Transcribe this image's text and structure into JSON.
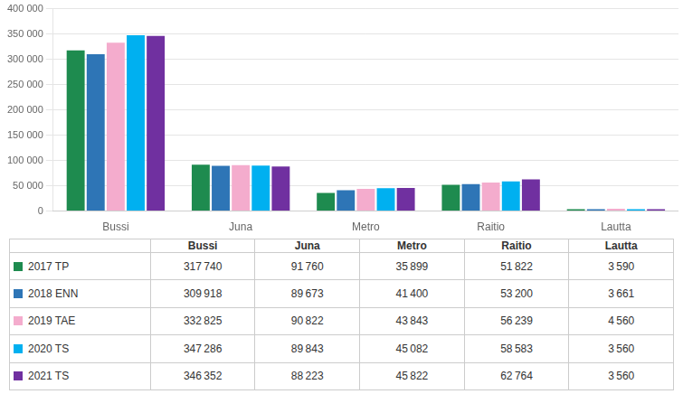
{
  "chart_data": {
    "type": "bar",
    "categories": [
      "Bussi",
      "Juna",
      "Metro",
      "Raitio",
      "Lautta"
    ],
    "series": [
      {
        "name": "2017 TP",
        "color": "#1E8B4F",
        "values": [
          317740,
          91760,
          35899,
          51822,
          3590
        ],
        "value_labels": [
          "317 740",
          "91 760",
          "35 899",
          "51 822",
          "3 590"
        ]
      },
      {
        "name": "2018 ENN",
        "color": "#2E75B6",
        "values": [
          309918,
          89673,
          41400,
          53200,
          3661
        ],
        "value_labels": [
          "309 918",
          "89 673",
          "41 400",
          "53 200",
          "3 661"
        ]
      },
      {
        "name": "2019 TAE",
        "color": "#F4ACCD",
        "values": [
          332825,
          90822,
          43843,
          56239,
          4560
        ],
        "value_labels": [
          "332 825",
          "90 822",
          "43 843",
          "56 239",
          "4 560"
        ]
      },
      {
        "name": "2020 TS",
        "color": "#00B0F0",
        "values": [
          347286,
          89843,
          45082,
          58583,
          3560
        ],
        "value_labels": [
          "347 286",
          "89 843",
          "45 082",
          "58 583",
          "3 560"
        ]
      },
      {
        "name": "2021 TS",
        "color": "#7030A0",
        "values": [
          346352,
          88223,
          45822,
          62764,
          3560
        ],
        "value_labels": [
          "346 352",
          "88 223",
          "45 822",
          "62 764",
          "3 560"
        ]
      }
    ],
    "ylim": [
      0,
      400000
    ],
    "yticks": [
      0,
      {
        "value": 50000,
        "label": "50 000"
      },
      {
        "value": 100000,
        "label": "100 000"
      },
      {
        "value": 150000,
        "label": "150 000"
      },
      {
        "value": 200000,
        "label": "200 000"
      },
      {
        "value": 250000,
        "label": "250 000"
      },
      {
        "value": 300000,
        "label": "300 000"
      },
      {
        "value": 350000,
        "label": "350 000"
      },
      {
        "value": 400000,
        "label": "400 000"
      }
    ],
    "grid": true
  }
}
